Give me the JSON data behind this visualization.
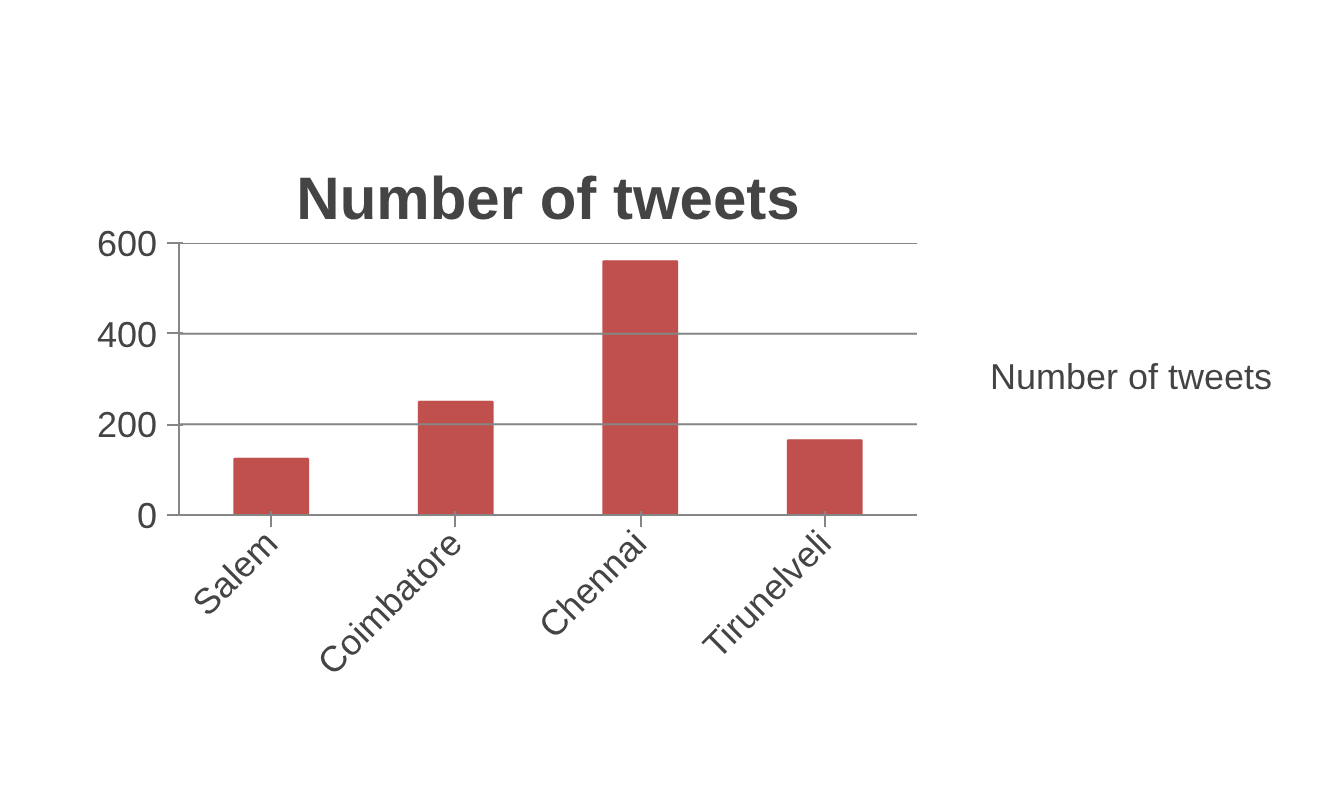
{
  "chart_data": {
    "type": "bar",
    "title": "Number of tweets",
    "categories": [
      "Salem",
      "Coimbatore",
      "Chennai",
      "Tirunelveli"
    ],
    "series": [
      {
        "name": "Number of tweets",
        "color": "#c0504d",
        "values": [
          124,
          250,
          560,
          165
        ]
      }
    ],
    "ylim": [
      0,
      600
    ],
    "yticks": [
      0,
      200,
      400,
      600
    ],
    "grid": "y",
    "legend": "right"
  }
}
